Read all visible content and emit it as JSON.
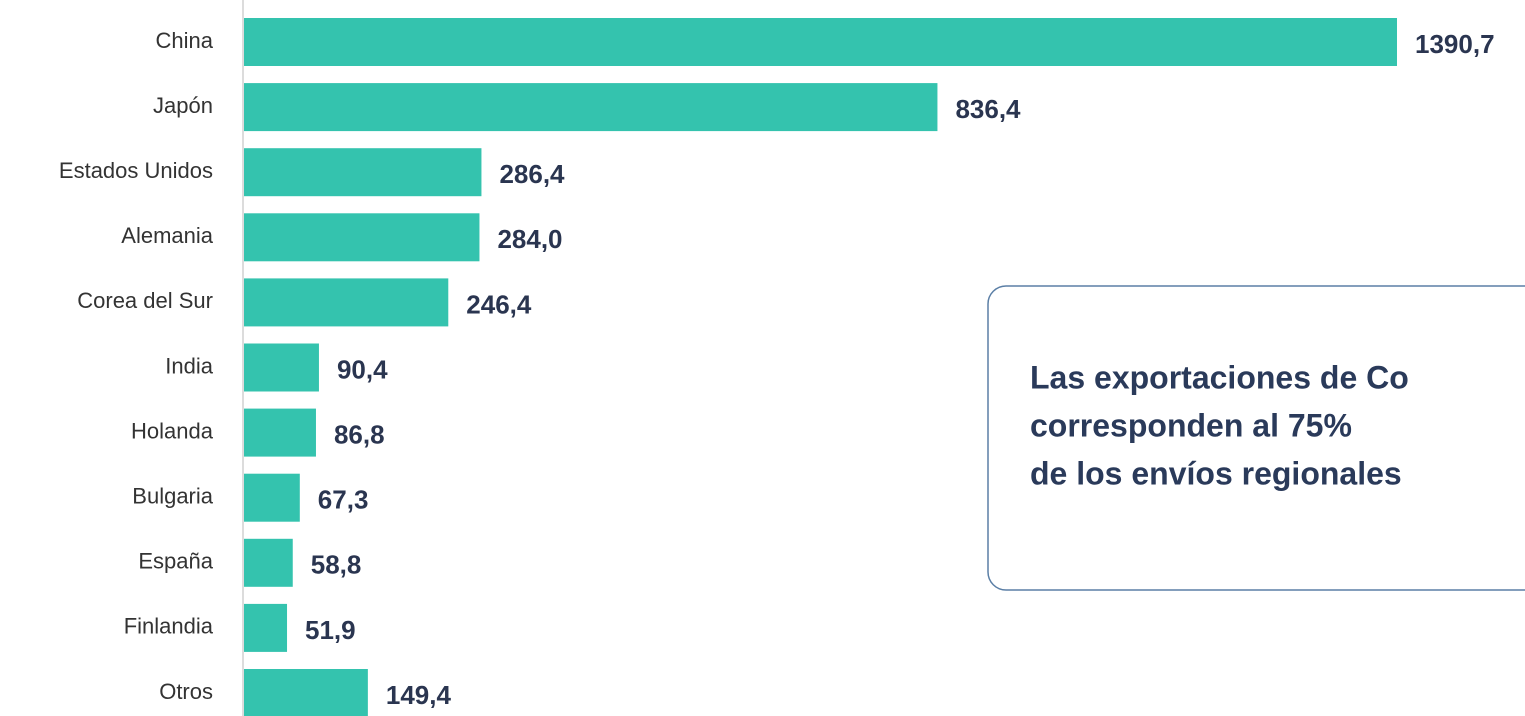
{
  "chart_data": {
    "type": "hbar",
    "categories": [
      "China",
      "Japón",
      "Estados Unidos",
      "Alemania",
      "Corea del Sur",
      "India",
      "Holanda",
      "Bulgaria",
      "España",
      "Finlandia",
      "Otros"
    ],
    "values": [
      1390.7,
      836.4,
      286.4,
      284.0,
      246.4,
      90.4,
      86.8,
      67.3,
      58.8,
      51.9,
      149.4
    ],
    "value_labels": [
      "1390,7",
      "836,4",
      "286,4",
      "284,0",
      "246,4",
      "90,4",
      "86,8",
      "67,3",
      "58,8",
      "51,9",
      "149,4"
    ],
    "color": "#34c3ae",
    "annotation": [
      "Las exportaciones de Co",
      "corresponden al 75%",
      "de los envíos regionales"
    ]
  }
}
